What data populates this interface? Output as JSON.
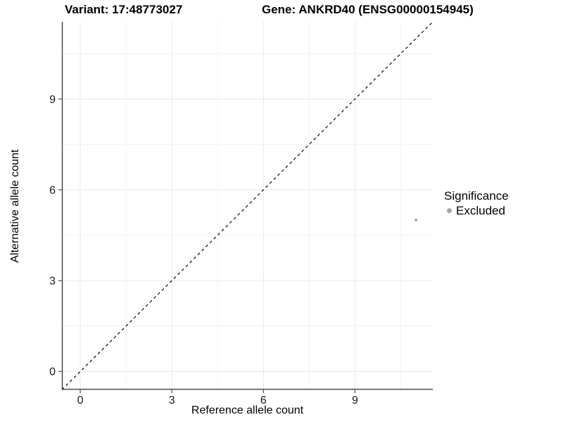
{
  "chart_data": {
    "type": "scatter",
    "title_left": "Variant: 17:48773027",
    "title_right": "Gene: ANKRD40 (ENSG00000154945)",
    "xlabel": "Reference allele count",
    "ylabel": "Alternative allele count",
    "axes": {
      "x": {
        "range": [
          -0.6,
          11.55
        ],
        "major_ticks": [
          0,
          3,
          6,
          9
        ],
        "minor_ticks": [
          1.5,
          4.5,
          7.5,
          10.5
        ]
      },
      "y": {
        "range": [
          -0.6,
          11.55
        ],
        "major_ticks": [
          0,
          3,
          6,
          9
        ],
        "minor_ticks": [
          1.5,
          4.5,
          7.5,
          10.5
        ]
      }
    },
    "reference_line": {
      "type": "identity",
      "label": "y = x",
      "style": "dashed",
      "color": "#000000"
    },
    "series": [
      {
        "name": "Excluded",
        "color": "#b0b0b0",
        "points": [
          {
            "x": 11,
            "y": 5
          }
        ]
      }
    ],
    "legend": {
      "title": "Significance",
      "items": [
        {
          "label": "Excluded",
          "color": "#a6a6a6"
        }
      ]
    },
    "colors": {
      "background": "#ffffff",
      "grid_major": "#e8e8e8",
      "grid_minor": "#f3f3f3",
      "axis_line": "#4a4a4a",
      "tick_mark": "#4d4d4d",
      "tick_label": "#1a1a1a"
    }
  }
}
